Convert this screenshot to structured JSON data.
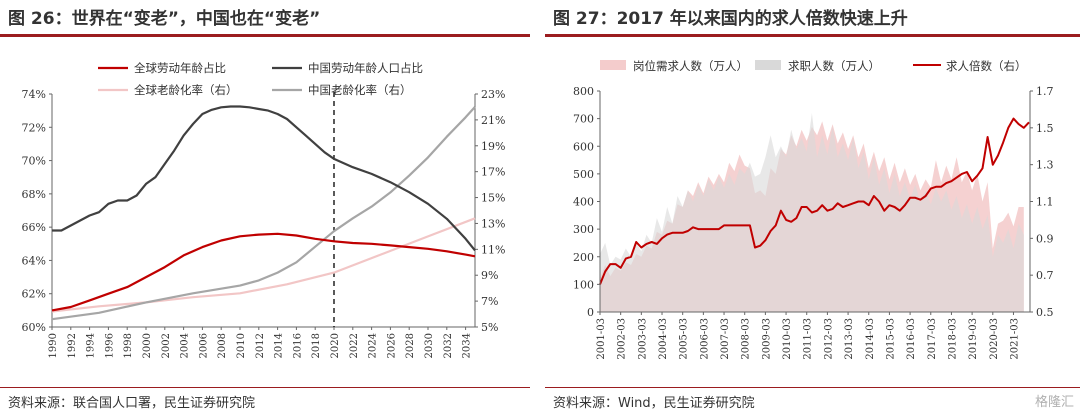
{
  "left": {
    "title": "图 26：世界在“变老”，中国也在“变老”",
    "source": "资料来源：联合国人口署，民生证券研究院"
  },
  "right": {
    "title": "图 27：2017 年以来国内的求人倍数快速上升",
    "source": "资料来源：Wind，民生证券研究院"
  },
  "watermark": "格隆汇",
  "chart_data": [
    {
      "type": "line",
      "x_ticks": [
        "1990",
        "1992",
        "1994",
        "1996",
        "1998",
        "2000",
        "2002",
        "2004",
        "2006",
        "2008",
        "2010",
        "2012",
        "2014",
        "2016",
        "2018",
        "2020",
        "2022",
        "2024",
        "2026",
        "2028",
        "2030",
        "2032",
        "2034"
      ],
      "x_range": [
        1990,
        2035
      ],
      "y_left_ticks": [
        "60%",
        "62%",
        "64%",
        "66%",
        "68%",
        "70%",
        "72%",
        "74%"
      ],
      "y_left_range": [
        60,
        74
      ],
      "y_right_ticks": [
        "5%",
        "7%",
        "9%",
        "11%",
        "13%",
        "15%",
        "17%",
        "19%",
        "21%",
        "23%"
      ],
      "y_right_range": [
        5,
        23
      ],
      "vline_x": 2020,
      "series": [
        {
          "name": "全球劳动年龄占比",
          "axis": "left",
          "color": "#c00000",
          "x": [
            1990,
            1992,
            1994,
            1996,
            1998,
            2000,
            2002,
            2004,
            2006,
            2008,
            2010,
            2012,
            2014,
            2016,
            2018,
            2020,
            2022,
            2024,
            2026,
            2028,
            2030,
            2032,
            2034,
            2035
          ],
          "y": [
            61.0,
            61.2,
            61.6,
            62.0,
            62.4,
            63.0,
            63.6,
            64.3,
            64.8,
            65.2,
            65.45,
            65.55,
            65.6,
            65.5,
            65.3,
            65.15,
            65.05,
            65.0,
            64.9,
            64.8,
            64.7,
            64.55,
            64.35,
            64.25
          ]
        },
        {
          "name": "中国劳动年龄人口占比",
          "axis": "left",
          "color": "#404040",
          "x": [
            1990,
            1991,
            1992,
            1993,
            1994,
            1995,
            1996,
            1997,
            1998,
            1999,
            2000,
            2001,
            2002,
            2003,
            2004,
            2005,
            2006,
            2007,
            2008,
            2009,
            2010,
            2011,
            2012,
            2013,
            2014,
            2015,
            2016,
            2017,
            2018,
            2019,
            2020,
            2022,
            2024,
            2026,
            2028,
            2030,
            2032,
            2034,
            2035
          ],
          "y": [
            65.8,
            65.8,
            66.1,
            66.4,
            66.7,
            66.9,
            67.4,
            67.6,
            67.6,
            67.9,
            68.6,
            69.0,
            69.8,
            70.6,
            71.5,
            72.2,
            72.8,
            73.05,
            73.2,
            73.25,
            73.25,
            73.2,
            73.1,
            73.0,
            72.8,
            72.5,
            72.0,
            71.5,
            71.0,
            70.5,
            70.1,
            69.6,
            69.2,
            68.7,
            68.1,
            67.4,
            66.5,
            65.3,
            64.6
          ]
        },
        {
          "name": "全球老龄化率（右）",
          "axis": "right",
          "color": "#f2c6c6",
          "x": [
            1990,
            1995,
            2000,
            2005,
            2010,
            2015,
            2020,
            2025,
            2030,
            2035
          ],
          "y": [
            6.2,
            6.6,
            6.9,
            7.3,
            7.6,
            8.3,
            9.2,
            10.6,
            12.0,
            13.4
          ]
        },
        {
          "name": "中国老龄化率（右）",
          "axis": "right",
          "color": "#a6a6a6",
          "x": [
            1990,
            1995,
            2000,
            2005,
            2010,
            2012,
            2014,
            2016,
            2018,
            2020,
            2022,
            2024,
            2026,
            2028,
            2030,
            2032,
            2034,
            2035
          ],
          "y": [
            5.6,
            6.1,
            6.9,
            7.6,
            8.2,
            8.6,
            9.2,
            10.0,
            11.2,
            12.4,
            13.4,
            14.3,
            15.4,
            16.7,
            18.1,
            19.7,
            21.2,
            22.0
          ]
        }
      ]
    },
    {
      "type": "area",
      "x_ticks": [
        "2001-03",
        "2002-03",
        "2003-03",
        "2004-03",
        "2005-03",
        "2006-03",
        "2007-03",
        "2008-03",
        "2009-03",
        "2010-03",
        "2011-03",
        "2012-03",
        "2013-03",
        "2014-03",
        "2015-03",
        "2016-03",
        "2017-03",
        "2018-03",
        "2019-03",
        "2020-03",
        "2021-03"
      ],
      "y_left_ticks": [
        "0",
        "100",
        "200",
        "300",
        "400",
        "500",
        "600",
        "700",
        "800"
      ],
      "y_left_range": [
        0,
        800
      ],
      "y_right_ticks": [
        "0.5",
        "0.7",
        "0.9",
        "1.1",
        "1.3",
        "1.5",
        "1.7"
      ],
      "y_right_range": [
        0.5,
        1.7
      ],
      "series": [
        {
          "name": "岗位需求人数（万人）",
          "axis": "left",
          "color": "#f4cccc",
          "x": [
            2001,
            2001.25,
            2001.5,
            2001.75,
            2002,
            2002.25,
            2002.5,
            2002.75,
            2003,
            2003.25,
            2003.5,
            2003.75,
            2004,
            2004.25,
            2004.5,
            2004.75,
            2005,
            2005.25,
            2005.5,
            2005.75,
            2006,
            2006.25,
            2006.5,
            2006.75,
            2007,
            2007.25,
            2007.5,
            2007.75,
            2008,
            2008.25,
            2008.5,
            2008.75,
            2009,
            2009.25,
            2009.5,
            2009.75,
            2010,
            2010.25,
            2010.5,
            2010.75,
            2011,
            2011.25,
            2011.5,
            2011.75,
            2012,
            2012.25,
            2012.5,
            2012.75,
            2013,
            2013.25,
            2013.5,
            2013.75,
            2014,
            2014.25,
            2014.5,
            2014.75,
            2015,
            2015.25,
            2015.5,
            2015.75,
            2016,
            2016.25,
            2016.5,
            2016.75,
            2017,
            2017.25,
            2017.5,
            2017.75,
            2018,
            2018.25,
            2018.5,
            2018.75,
            2019,
            2019.25,
            2019.5,
            2019.75,
            2020,
            2020.25,
            2020.5,
            2020.75,
            2021,
            2021.25,
            2021.5
          ],
          "y": [
            120,
            170,
            130,
            160,
            150,
            180,
            170,
            210,
            200,
            240,
            230,
            290,
            280,
            330,
            320,
            390,
            380,
            440,
            420,
            470,
            430,
            490,
            460,
            500,
            470,
            540,
            510,
            570,
            530,
            520,
            430,
            440,
            420,
            520,
            500,
            590,
            570,
            640,
            600,
            660,
            620,
            670,
            640,
            690,
            620,
            680,
            610,
            650,
            590,
            640,
            560,
            610,
            520,
            580,
            510,
            560,
            480,
            540,
            470,
            520,
            460,
            500,
            440,
            480,
            450,
            550,
            470,
            530,
            480,
            560,
            470,
            510,
            440,
            500,
            400,
            470,
            230,
            320,
            330,
            360,
            310,
            380,
            380
          ]
        },
        {
          "name": "求职人数（万人）",
          "axis": "left",
          "color": "#d9d9d9",
          "x": [
            2001,
            2001.25,
            2001.5,
            2001.75,
            2002,
            2002.25,
            2002.5,
            2002.75,
            2003,
            2003.25,
            2003.5,
            2003.75,
            2004,
            2004.25,
            2004.5,
            2004.75,
            2005,
            2005.25,
            2005.5,
            2005.75,
            2006,
            2006.25,
            2006.5,
            2006.75,
            2007,
            2007.25,
            2007.5,
            2007.75,
            2008,
            2008.25,
            2008.5,
            2008.75,
            2009,
            2009.25,
            2009.5,
            2009.75,
            2010,
            2010.25,
            2010.5,
            2010.75,
            2011,
            2011.25,
            2011.5,
            2011.75,
            2012,
            2012.25,
            2012.5,
            2012.75,
            2013,
            2013.25,
            2013.5,
            2013.75,
            2014,
            2014.25,
            2014.5,
            2014.75,
            2015,
            2015.25,
            2015.5,
            2015.75,
            2016,
            2016.25,
            2016.5,
            2016.75,
            2017,
            2017.25,
            2017.5,
            2017.75,
            2018,
            2018.25,
            2018.5,
            2018.75,
            2019,
            2019.25,
            2019.5,
            2019.75,
            2020,
            2020.25,
            2020.5,
            2020.75,
            2021,
            2021.25,
            2021.5
          ],
          "y": [
            210,
            250,
            170,
            200,
            190,
            230,
            200,
            250,
            220,
            280,
            250,
            340,
            290,
            380,
            320,
            420,
            380,
            440,
            400,
            460,
            420,
            480,
            440,
            490,
            450,
            500,
            460,
            520,
            500,
            540,
            490,
            500,
            560,
            640,
            560,
            600,
            560,
            660,
            590,
            630,
            580,
            720,
            560,
            640,
            570,
            670,
            560,
            610,
            550,
            630,
            520,
            580,
            480,
            560,
            460,
            520,
            430,
            500,
            420,
            470,
            410,
            460,
            400,
            440,
            390,
            450,
            400,
            440,
            370,
            420,
            340,
            390,
            320,
            380,
            300,
            350,
            200,
            280,
            250,
            300,
            230,
            320,
            280
          ]
        },
        {
          "name": "求人倍数（右）",
          "axis": "right",
          "color": "#c00000",
          "x": [
            2001,
            2001.25,
            2001.5,
            2001.75,
            2002,
            2002.25,
            2002.5,
            2002.75,
            2003,
            2003.25,
            2003.5,
            2003.75,
            2004,
            2004.25,
            2004.5,
            2004.75,
            2005,
            2005.25,
            2005.5,
            2005.75,
            2006,
            2006.25,
            2006.5,
            2006.75,
            2007,
            2007.25,
            2007.5,
            2007.75,
            2008,
            2008.25,
            2008.5,
            2008.75,
            2009,
            2009.25,
            2009.5,
            2009.75,
            2010,
            2010.25,
            2010.5,
            2010.75,
            2011,
            2011.25,
            2011.5,
            2011.75,
            2012,
            2012.25,
            2012.5,
            2012.75,
            2013,
            2013.25,
            2013.5,
            2013.75,
            2014,
            2014.25,
            2014.5,
            2014.75,
            2015,
            2015.25,
            2015.5,
            2015.75,
            2016,
            2016.25,
            2016.5,
            2016.75,
            2017,
            2017.25,
            2017.5,
            2017.75,
            2018,
            2018.25,
            2018.5,
            2018.75,
            2019,
            2019.25,
            2019.5,
            2019.75,
            2020,
            2020.25,
            2020.5,
            2020.75,
            2021,
            2021.25,
            2021.5,
            2021.75
          ],
          "y": [
            0.65,
            0.72,
            0.76,
            0.76,
            0.74,
            0.79,
            0.8,
            0.88,
            0.85,
            0.87,
            0.88,
            0.87,
            0.9,
            0.92,
            0.93,
            0.93,
            0.93,
            0.94,
            0.96,
            0.95,
            0.95,
            0.95,
            0.95,
            0.95,
            0.97,
            0.97,
            0.97,
            0.97,
            0.97,
            0.97,
            0.85,
            0.86,
            0.89,
            0.94,
            0.97,
            1.05,
            1.0,
            0.99,
            1.01,
            1.07,
            1.07,
            1.04,
            1.05,
            1.08,
            1.05,
            1.06,
            1.09,
            1.07,
            1.08,
            1.09,
            1.1,
            1.1,
            1.08,
            1.13,
            1.1,
            1.05,
            1.08,
            1.07,
            1.05,
            1.08,
            1.12,
            1.12,
            1.11,
            1.13,
            1.17,
            1.18,
            1.18,
            1.2,
            1.21,
            1.23,
            1.25,
            1.26,
            1.21,
            1.24,
            1.28,
            1.45,
            1.3,
            1.35,
            1.42,
            1.5,
            1.55,
            1.52,
            1.5,
            1.53
          ]
        }
      ]
    }
  ]
}
